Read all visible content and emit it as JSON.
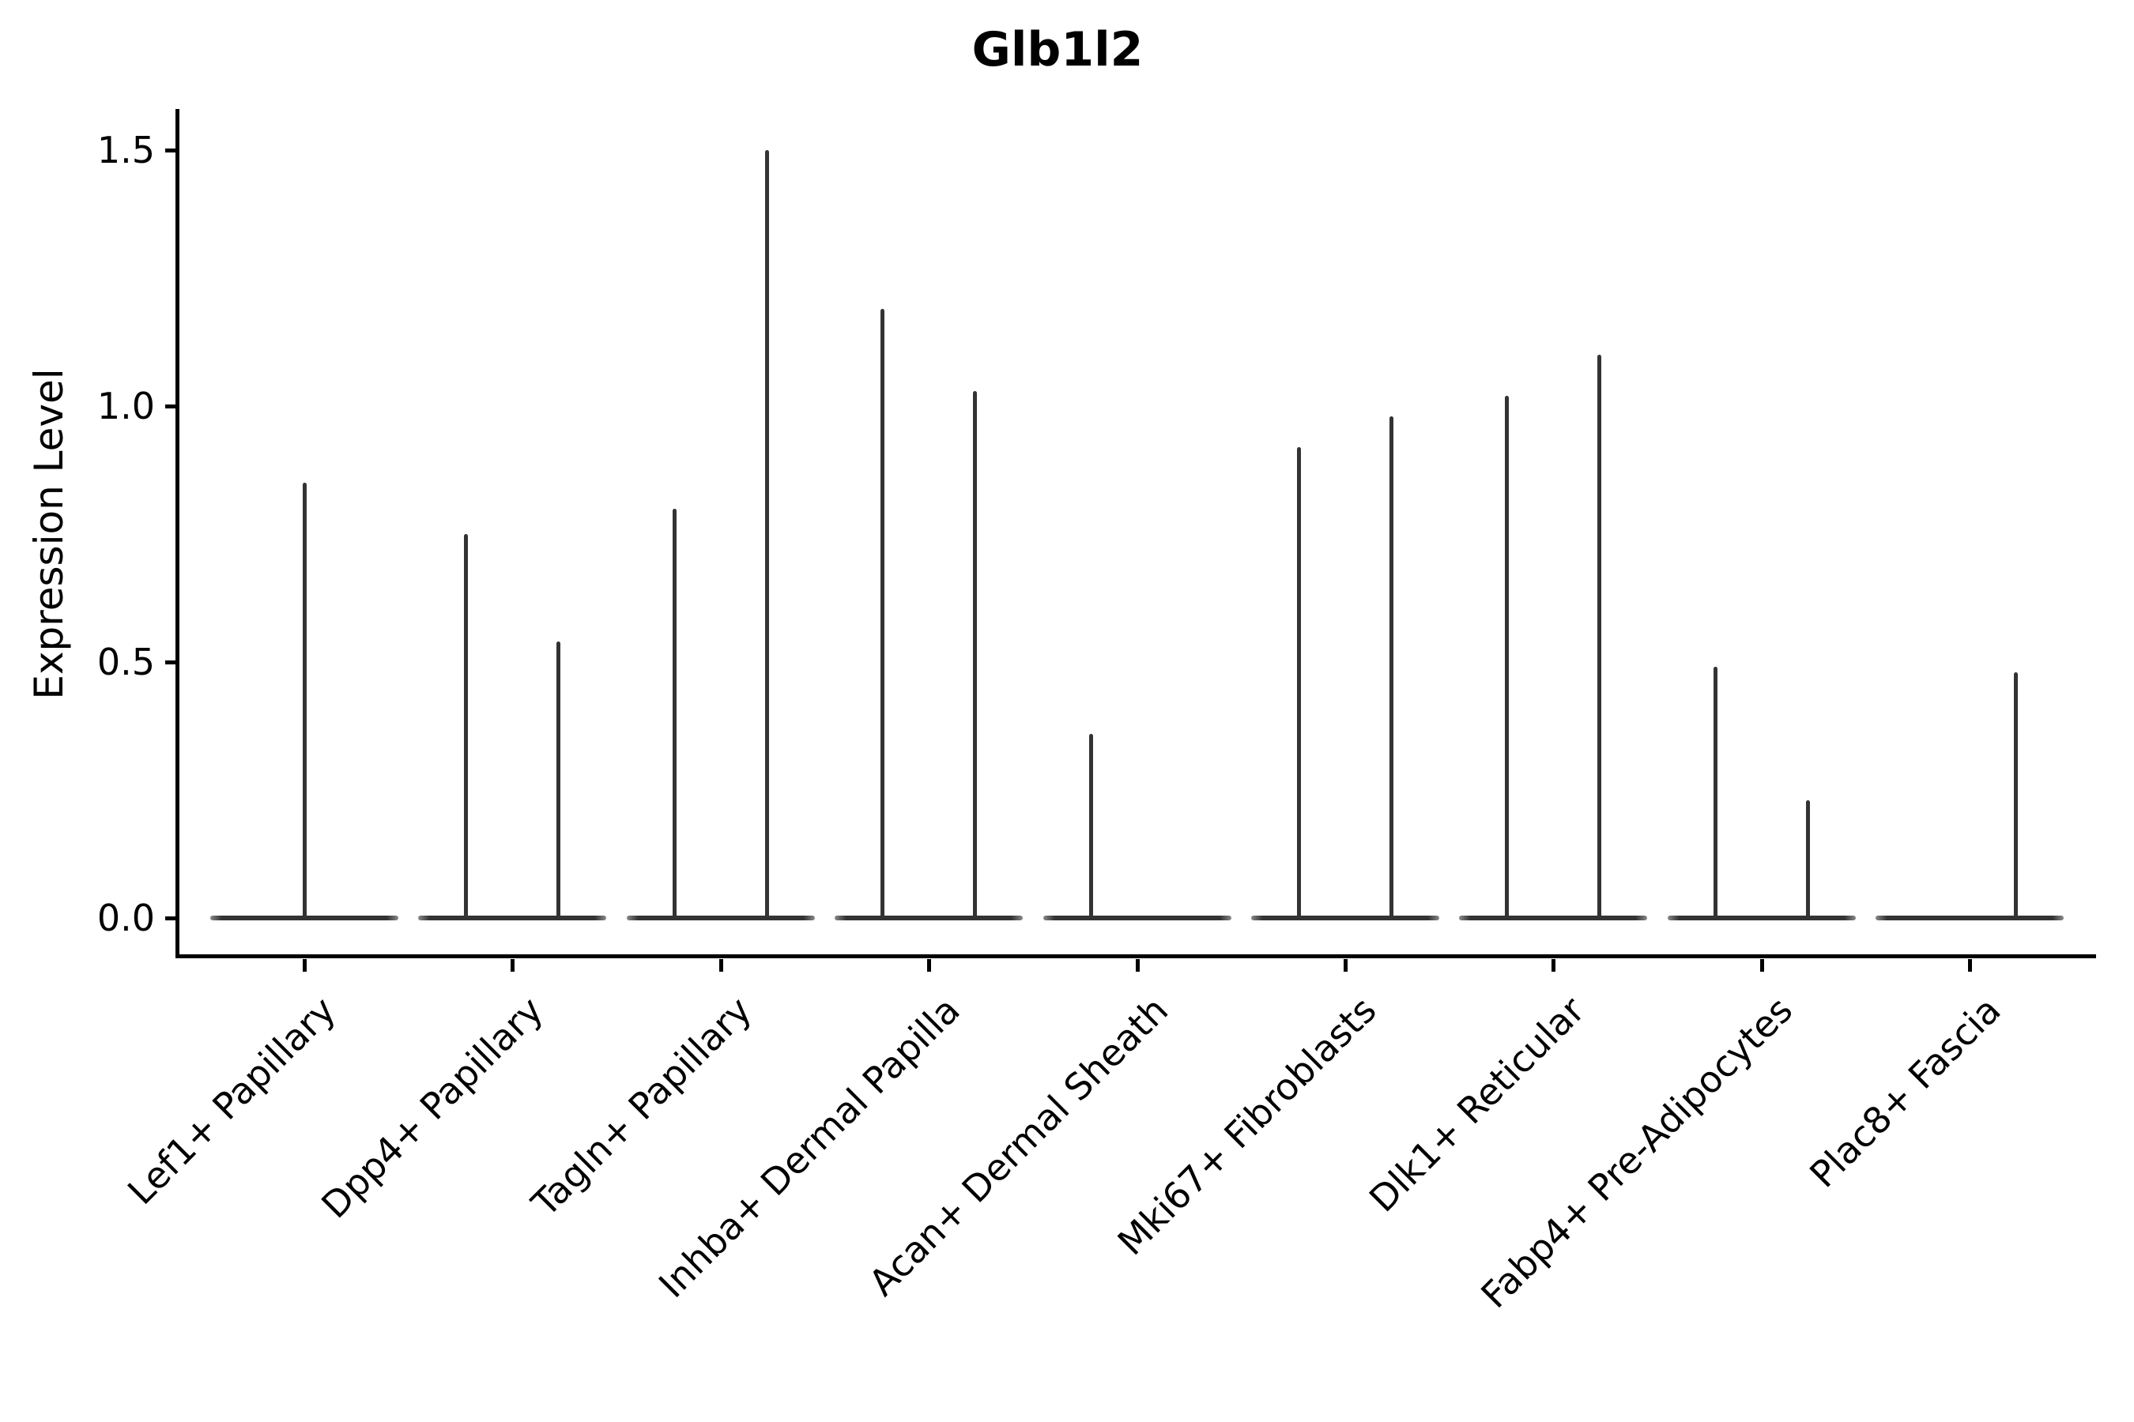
{
  "title": "Glb1l2",
  "y_axis": {
    "label": "Expression Level",
    "tick_labels": [
      "0.0",
      "0.5",
      "1.0",
      "1.5"
    ]
  },
  "x_axis": {
    "categories": [
      "Lef1+ Papillary",
      "Dpp4+ Papillary",
      "Tagln+ Papillary",
      "Inhba+ Dermal Papilla",
      "Acan+ Dermal Sheath",
      "Mki67+ Fibroblasts",
      "Dlk1+ Reticular",
      "Fabp4+ Pre-Adipocytes",
      "Plac8+ Fascia"
    ]
  },
  "colors": {
    "violin": "#333333",
    "axis": "#000000",
    "background": "#ffffff"
  },
  "chart_data": {
    "type": "violin",
    "title": "Glb1l2",
    "xlabel": "",
    "ylabel": "Expression Level",
    "ylim": [
      -0.07,
      1.58
    ],
    "yticks": [
      0.0,
      0.5,
      1.0,
      1.5
    ],
    "grid": false,
    "legend": false,
    "categories": [
      "Lef1+ Papillary",
      "Dpp4+ Papillary",
      "Tagln+ Papillary",
      "Inhba+ Dermal Papilla",
      "Acan+ Dermal Sheath",
      "Mki67+ Fibroblasts",
      "Dlk1+ Reticular",
      "Fabp4+ Pre-Adipocytes",
      "Plac8+ Fascia"
    ],
    "violins": [
      {
        "category": "Lef1+ Papillary",
        "slot": "center",
        "peak_expression": 0.85
      },
      {
        "category": "Dpp4+ Papillary",
        "slot": "left",
        "peak_expression": 0.75
      },
      {
        "category": "Dpp4+ Papillary",
        "slot": "right",
        "peak_expression": 0.54
      },
      {
        "category": "Tagln+ Papillary",
        "slot": "left",
        "peak_expression": 0.8
      },
      {
        "category": "Tagln+ Papillary",
        "slot": "right",
        "peak_expression": 1.5
      },
      {
        "category": "Inhba+ Dermal Papilla",
        "slot": "left",
        "peak_expression": 1.19
      },
      {
        "category": "Inhba+ Dermal Papilla",
        "slot": "right",
        "peak_expression": 1.03
      },
      {
        "category": "Acan+ Dermal Sheath",
        "slot": "left",
        "peak_expression": 0.36
      },
      {
        "category": "Mki67+ Fibroblasts",
        "slot": "left",
        "peak_expression": 0.92
      },
      {
        "category": "Mki67+ Fibroblasts",
        "slot": "right",
        "peak_expression": 0.98
      },
      {
        "category": "Dlk1+ Reticular",
        "slot": "left",
        "peak_expression": 1.02
      },
      {
        "category": "Dlk1+ Reticular",
        "slot": "right",
        "peak_expression": 1.1
      },
      {
        "category": "Fabp4+ Pre-Adipocytes",
        "slot": "left",
        "peak_expression": 0.49
      },
      {
        "category": "Fabp4+ Pre-Adipocytes",
        "slot": "right",
        "peak_expression": 0.23
      },
      {
        "category": "Plac8+ Fascia",
        "slot": "right",
        "peak_expression": 0.48
      }
    ],
    "baseline_expression": 0.0
  }
}
